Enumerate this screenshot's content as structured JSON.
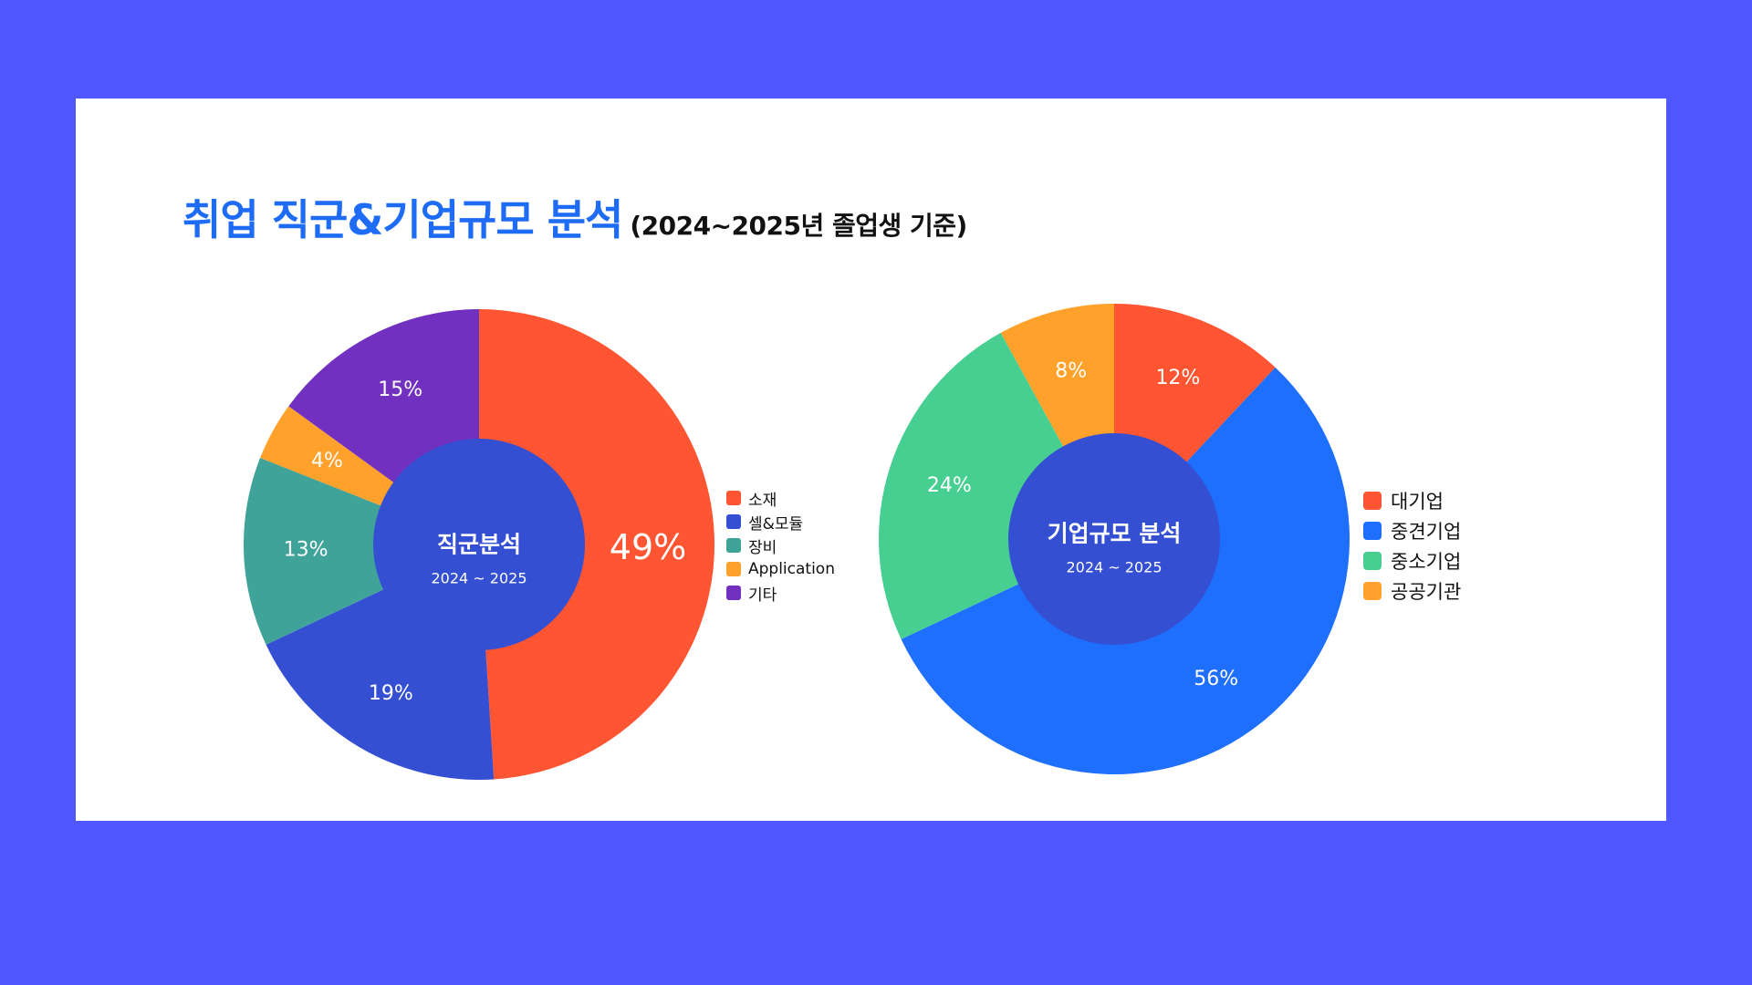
{
  "title": {
    "main": "취업 직군&기업규모 분석",
    "sub": "(2024~2025년 졸업생 기준)"
  },
  "chart_data": [
    {
      "type": "pie",
      "center_title": "직군분석",
      "center_subtitle": "2024 ~ 2025",
      "slices": [
        {
          "label": "소재",
          "value": 49,
          "text": "49%",
          "color": "#ff5532"
        },
        {
          "label": "셀&모듈",
          "value": 19,
          "text": "19%",
          "color": "#344fd1"
        },
        {
          "label": "장비",
          "value": 13,
          "text": "13%",
          "color": "#40a39a"
        },
        {
          "label": "Application",
          "value": 4,
          "text": "4%",
          "color": "#ffa12b"
        },
        {
          "label": "기타",
          "value": 15,
          "text": "15%",
          "color": "#7130bf"
        }
      ],
      "legend_position": "right"
    },
    {
      "type": "pie",
      "center_title": "기업규모 분석",
      "center_subtitle": "2024 ~ 2025",
      "slices": [
        {
          "label": "대기업",
          "value": 12,
          "text": "12%",
          "color": "#ff5532"
        },
        {
          "label": "중견기업",
          "value": 56,
          "text": "56%",
          "color": "#1e6ffe"
        },
        {
          "label": "중소기업",
          "value": 24,
          "text": "24%",
          "color": "#47cf92"
        },
        {
          "label": "공공기관",
          "value": 8,
          "text": "8%",
          "color": "#ffa12b"
        }
      ],
      "legend_position": "right"
    }
  ]
}
